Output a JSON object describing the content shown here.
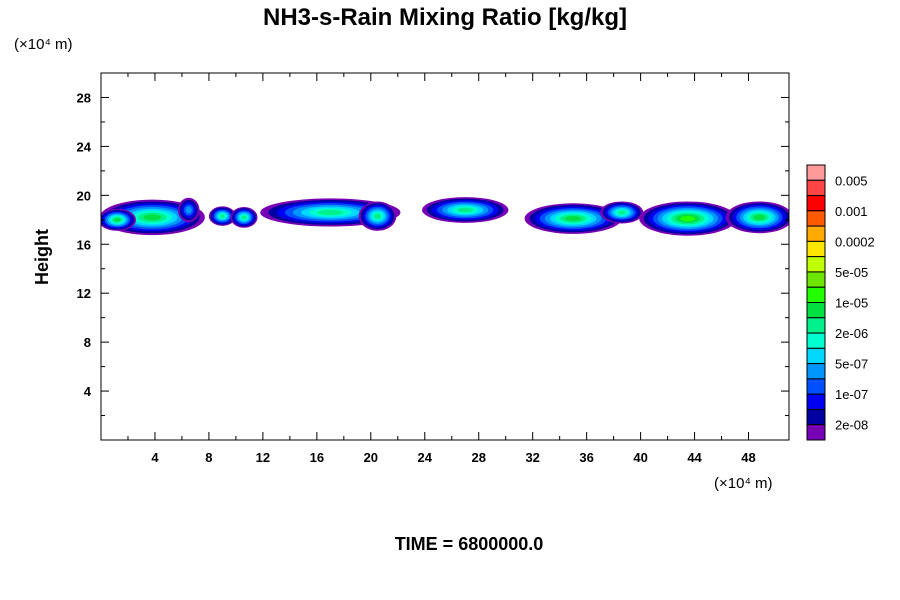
{
  "chart_data": {
    "type": "heatmap",
    "title": "NH3-s-Rain Mixing Ratio [kg/kg]",
    "xlabel": "",
    "ylabel": "Height",
    "x_unit": "(×10⁴ m)",
    "y_unit": "(×10⁴ m)",
    "xlim": [
      0,
      51
    ],
    "ylim": [
      0,
      30
    ],
    "xticks": [
      4,
      8,
      12,
      16,
      20,
      24,
      28,
      32,
      36,
      40,
      44,
      48
    ],
    "yticks": [
      4,
      8,
      12,
      16,
      20,
      24,
      28
    ],
    "footer": "TIME = 6800000.0",
    "colorbar": {
      "colors": [
        "#ff9a9a",
        "#ff4646",
        "#ff0000",
        "#ff5a00",
        "#ffaa00",
        "#ffe600",
        "#c0ff00",
        "#6ee600",
        "#22ff00",
        "#00e040",
        "#00f08c",
        "#00ffd0",
        "#00d8ff",
        "#0096ff",
        "#0050ff",
        "#0000f0",
        "#0000a0",
        "#7800b4"
      ],
      "labels": [
        "0.005",
        "0.001",
        "0.0002",
        "5e-05",
        "1e-05",
        "2e-06",
        "5e-07",
        "1e-07",
        "2e-08"
      ]
    },
    "blobs": [
      {
        "x": 3.8,
        "y": 18.2,
        "rx": 3.9,
        "ry": 1.45,
        "peak": 9
      },
      {
        "x": 1.2,
        "y": 18.0,
        "rx": 1.4,
        "ry": 0.9,
        "peak": 9
      },
      {
        "x": 6.5,
        "y": 18.8,
        "rx": 0.8,
        "ry": 1.0,
        "peak": 5
      },
      {
        "x": 9.0,
        "y": 18.3,
        "rx": 1.0,
        "ry": 0.8,
        "peak": 8
      },
      {
        "x": 10.6,
        "y": 18.2,
        "rx": 1.0,
        "ry": 0.85,
        "peak": 8
      },
      {
        "x": 17.0,
        "y": 18.6,
        "rx": 5.2,
        "ry": 1.15,
        "peak": 8
      },
      {
        "x": 20.5,
        "y": 18.3,
        "rx": 1.4,
        "ry": 1.2,
        "peak": 8
      },
      {
        "x": 27.0,
        "y": 18.8,
        "rx": 3.2,
        "ry": 1.05,
        "peak": 8
      },
      {
        "x": 35.0,
        "y": 18.1,
        "rx": 3.6,
        "ry": 1.25,
        "peak": 9
      },
      {
        "x": 38.6,
        "y": 18.6,
        "rx": 1.6,
        "ry": 0.9,
        "peak": 8
      },
      {
        "x": 43.5,
        "y": 18.1,
        "rx": 3.6,
        "ry": 1.4,
        "peak": 10
      },
      {
        "x": 48.8,
        "y": 18.2,
        "rx": 2.5,
        "ry": 1.3,
        "peak": 9
      }
    ]
  }
}
